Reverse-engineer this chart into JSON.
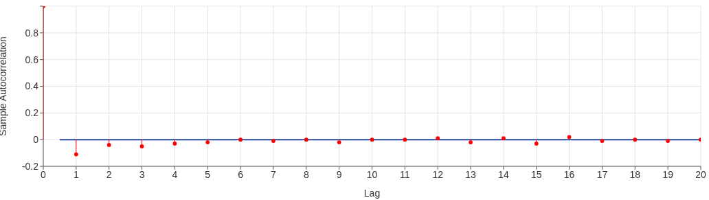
{
  "chart_data": {
    "type": "lollipop",
    "xlabel": "Lag",
    "ylabel": "Sample Autocorrelation",
    "x": [
      0,
      1,
      2,
      3,
      4,
      5,
      6,
      7,
      8,
      9,
      10,
      11,
      12,
      13,
      14,
      15,
      16,
      17,
      18,
      19,
      20
    ],
    "series": [
      {
        "color": "#ff0000",
        "marker": "circle",
        "values": [
          1,
          -0.11,
          -0.04,
          -0.05,
          -0.03,
          -0.02,
          0,
          -0.01,
          0,
          -0.02,
          0,
          0,
          0.01,
          -0.02,
          0.01,
          -0.03,
          0.02,
          -0.01,
          0,
          -0.01,
          0
        ]
      },
      {
        "type": "line",
        "color": "#2b4c9b",
        "x": [
          0.5,
          20
        ],
        "values": [
          0,
          0
        ]
      }
    ],
    "xlim": [
      0,
      20
    ],
    "xticks": [
      0,
      1,
      2,
      3,
      4,
      5,
      6,
      7,
      8,
      9,
      10,
      11,
      12,
      13,
      14,
      15,
      16,
      17,
      18,
      19,
      20
    ],
    "ylim": [
      -0.2,
      1
    ],
    "yticks": [
      -0.2,
      0,
      0.2,
      0.4,
      0.6,
      0.8,
      {
        "value": 1,
        "label": null
      }
    ],
    "grid": true
  }
}
